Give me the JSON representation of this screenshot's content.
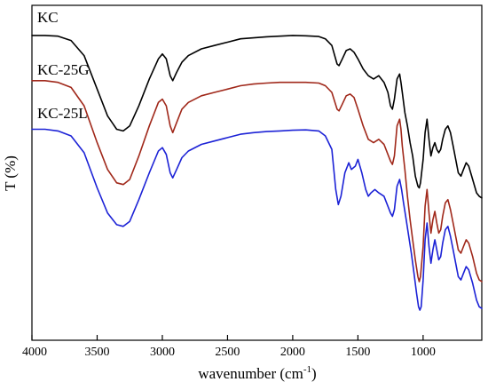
{
  "chart_data": {
    "type": "line",
    "title": "",
    "xlabel": "wavenumber (cm",
    "xlabel_sup": "-1",
    "xlabel_suffix": ")",
    "ylabel": "T (%)",
    "x_reversed": true,
    "xlim": [
      4000,
      550
    ],
    "xticks": [
      4000,
      3500,
      3000,
      2500,
      2000,
      1500,
      1000
    ],
    "ylim": [
      0,
      100
    ],
    "grid": false,
    "legend": "inline-labels",
    "series": [
      {
        "name": "KC",
        "color": "#000000",
        "points": [
          [
            4000,
            91
          ],
          [
            3900,
            91
          ],
          [
            3800,
            90.8
          ],
          [
            3700,
            89.5
          ],
          [
            3600,
            85
          ],
          [
            3500,
            75
          ],
          [
            3420,
            67
          ],
          [
            3350,
            63
          ],
          [
            3300,
            62.5
          ],
          [
            3250,
            64
          ],
          [
            3180,
            70
          ],
          [
            3100,
            78
          ],
          [
            3030,
            84
          ],
          [
            3000,
            85.5
          ],
          [
            2970,
            84
          ],
          [
            2940,
            79
          ],
          [
            2920,
            77.5
          ],
          [
            2890,
            80
          ],
          [
            2850,
            83
          ],
          [
            2800,
            85
          ],
          [
            2700,
            87
          ],
          [
            2600,
            88
          ],
          [
            2500,
            89
          ],
          [
            2400,
            90
          ],
          [
            2300,
            90.3
          ],
          [
            2200,
            90.6
          ],
          [
            2100,
            90.8
          ],
          [
            2000,
            91
          ],
          [
            1900,
            90.9
          ],
          [
            1800,
            90.7
          ],
          [
            1750,
            90
          ],
          [
            1700,
            88
          ],
          [
            1660,
            82.5
          ],
          [
            1645,
            82
          ],
          [
            1620,
            84
          ],
          [
            1590,
            86.5
          ],
          [
            1560,
            87
          ],
          [
            1530,
            86
          ],
          [
            1500,
            84
          ],
          [
            1460,
            81
          ],
          [
            1420,
            79
          ],
          [
            1380,
            78
          ],
          [
            1340,
            79
          ],
          [
            1300,
            77
          ],
          [
            1270,
            74
          ],
          [
            1250,
            70
          ],
          [
            1235,
            69
          ],
          [
            1220,
            72
          ],
          [
            1200,
            78
          ],
          [
            1180,
            79.5
          ],
          [
            1170,
            77
          ],
          [
            1160,
            74
          ],
          [
            1140,
            68
          ],
          [
            1120,
            64
          ],
          [
            1100,
            59
          ],
          [
            1080,
            55
          ],
          [
            1060,
            49
          ],
          [
            1040,
            46
          ],
          [
            1030,
            45.5
          ],
          [
            1020,
            47
          ],
          [
            1000,
            54
          ],
          [
            985,
            62
          ],
          [
            970,
            66
          ],
          [
            955,
            60
          ],
          [
            940,
            55
          ],
          [
            925,
            57.5
          ],
          [
            910,
            59
          ],
          [
            895,
            57
          ],
          [
            880,
            56
          ],
          [
            865,
            57
          ],
          [
            850,
            60
          ],
          [
            830,
            63
          ],
          [
            810,
            64
          ],
          [
            790,
            62
          ],
          [
            770,
            58
          ],
          [
            750,
            54
          ],
          [
            730,
            50
          ],
          [
            710,
            49
          ],
          [
            690,
            51
          ],
          [
            670,
            53
          ],
          [
            650,
            52
          ],
          [
            620,
            48
          ],
          [
            590,
            44
          ],
          [
            570,
            43
          ],
          [
            550,
            42.5
          ]
        ]
      },
      {
        "name": "KC-25G",
        "color": "#a0281a",
        "points": [
          [
            4000,
            77.5
          ],
          [
            3900,
            77.5
          ],
          [
            3800,
            77
          ],
          [
            3700,
            75.5
          ],
          [
            3600,
            70
          ],
          [
            3500,
            59
          ],
          [
            3420,
            51
          ],
          [
            3350,
            47
          ],
          [
            3300,
            46.5
          ],
          [
            3250,
            48
          ],
          [
            3180,
            55
          ],
          [
            3100,
            64
          ],
          [
            3030,
            71
          ],
          [
            3000,
            72
          ],
          [
            2970,
            70
          ],
          [
            2940,
            64
          ],
          [
            2920,
            62
          ],
          [
            2890,
            65
          ],
          [
            2850,
            69
          ],
          [
            2800,
            71
          ],
          [
            2700,
            73
          ],
          [
            2600,
            74
          ],
          [
            2500,
            75
          ],
          [
            2400,
            76
          ],
          [
            2300,
            76.5
          ],
          [
            2200,
            76.8
          ],
          [
            2100,
            77
          ],
          [
            2000,
            77
          ],
          [
            1900,
            77
          ],
          [
            1800,
            76.8
          ],
          [
            1750,
            76
          ],
          [
            1700,
            74
          ],
          [
            1660,
            69
          ],
          [
            1645,
            68.5
          ],
          [
            1620,
            70.5
          ],
          [
            1590,
            73
          ],
          [
            1560,
            73.5
          ],
          [
            1530,
            72.5
          ],
          [
            1500,
            69
          ],
          [
            1460,
            64
          ],
          [
            1420,
            60
          ],
          [
            1380,
            59
          ],
          [
            1340,
            60
          ],
          [
            1300,
            58.5
          ],
          [
            1270,
            55.5
          ],
          [
            1250,
            53.5
          ],
          [
            1235,
            52.5
          ],
          [
            1220,
            55
          ],
          [
            1200,
            64
          ],
          [
            1180,
            66
          ],
          [
            1170,
            63
          ],
          [
            1160,
            58
          ],
          [
            1140,
            51
          ],
          [
            1120,
            43
          ],
          [
            1100,
            36
          ],
          [
            1080,
            30
          ],
          [
            1060,
            24
          ],
          [
            1040,
            19
          ],
          [
            1030,
            17.5
          ],
          [
            1020,
            19
          ],
          [
            1000,
            28
          ],
          [
            985,
            40
          ],
          [
            970,
            45
          ],
          [
            955,
            38
          ],
          [
            940,
            32
          ],
          [
            925,
            36
          ],
          [
            910,
            38.5
          ],
          [
            895,
            35
          ],
          [
            880,
            32
          ],
          [
            865,
            33
          ],
          [
            850,
            37
          ],
          [
            830,
            41
          ],
          [
            810,
            42
          ],
          [
            790,
            39
          ],
          [
            770,
            35
          ],
          [
            750,
            31
          ],
          [
            730,
            27
          ],
          [
            710,
            26
          ],
          [
            690,
            28
          ],
          [
            670,
            30
          ],
          [
            650,
            29
          ],
          [
            620,
            25
          ],
          [
            590,
            20
          ],
          [
            570,
            18
          ],
          [
            550,
            17.5
          ]
        ]
      },
      {
        "name": "KC-25L",
        "color": "#1c22d6",
        "points": [
          [
            4000,
            63
          ],
          [
            3900,
            63
          ],
          [
            3800,
            62.5
          ],
          [
            3700,
            61
          ],
          [
            3600,
            56
          ],
          [
            3500,
            45.5
          ],
          [
            3420,
            38
          ],
          [
            3350,
            34.5
          ],
          [
            3300,
            34
          ],
          [
            3250,
            35.5
          ],
          [
            3180,
            42
          ],
          [
            3100,
            50
          ],
          [
            3030,
            56.5
          ],
          [
            3000,
            57.5
          ],
          [
            2970,
            55.5
          ],
          [
            2940,
            50
          ],
          [
            2920,
            48.5
          ],
          [
            2890,
            51
          ],
          [
            2850,
            54.5
          ],
          [
            2800,
            56.5
          ],
          [
            2700,
            58.5
          ],
          [
            2600,
            59.5
          ],
          [
            2500,
            60.5
          ],
          [
            2400,
            61.5
          ],
          [
            2300,
            62
          ],
          [
            2200,
            62.3
          ],
          [
            2100,
            62.5
          ],
          [
            2000,
            62.7
          ],
          [
            1900,
            62.8
          ],
          [
            1800,
            62.5
          ],
          [
            1750,
            61
          ],
          [
            1700,
            57
          ],
          [
            1670,
            45
          ],
          [
            1650,
            40.5
          ],
          [
            1630,
            43
          ],
          [
            1600,
            50
          ],
          [
            1570,
            53
          ],
          [
            1550,
            51
          ],
          [
            1520,
            52
          ],
          [
            1500,
            54
          ],
          [
            1470,
            50
          ],
          [
            1440,
            45
          ],
          [
            1420,
            43
          ],
          [
            1400,
            44
          ],
          [
            1370,
            45
          ],
          [
            1340,
            44
          ],
          [
            1300,
            43
          ],
          [
            1270,
            40
          ],
          [
            1250,
            38
          ],
          [
            1235,
            37
          ],
          [
            1220,
            39
          ],
          [
            1200,
            46
          ],
          [
            1180,
            48
          ],
          [
            1165,
            45
          ],
          [
            1150,
            41
          ],
          [
            1130,
            36
          ],
          [
            1110,
            31
          ],
          [
            1090,
            26
          ],
          [
            1070,
            20
          ],
          [
            1050,
            14
          ],
          [
            1035,
            10
          ],
          [
            1025,
            9
          ],
          [
            1015,
            10
          ],
          [
            1000,
            18
          ],
          [
            985,
            30
          ],
          [
            970,
            35
          ],
          [
            955,
            28
          ],
          [
            940,
            23
          ],
          [
            925,
            27
          ],
          [
            910,
            30
          ],
          [
            895,
            27
          ],
          [
            880,
            24
          ],
          [
            865,
            25
          ],
          [
            850,
            29
          ],
          [
            830,
            33
          ],
          [
            810,
            34
          ],
          [
            790,
            31
          ],
          [
            770,
            27
          ],
          [
            750,
            23
          ],
          [
            730,
            19
          ],
          [
            710,
            18
          ],
          [
            690,
            20
          ],
          [
            670,
            22
          ],
          [
            650,
            21
          ],
          [
            620,
            17
          ],
          [
            590,
            12
          ],
          [
            570,
            10
          ],
          [
            550,
            9.5
          ]
        ]
      }
    ]
  }
}
